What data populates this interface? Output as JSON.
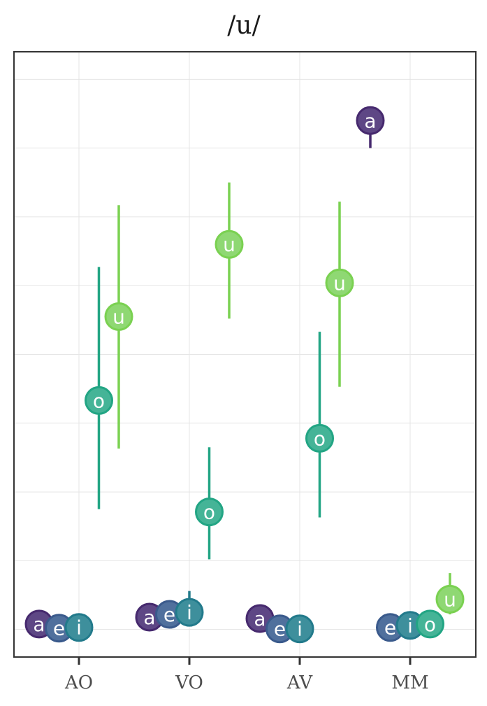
{
  "chart_data": {
    "type": "scatter",
    "title": "/u/",
    "xlabel": "",
    "ylabel": "",
    "categories": [
      "AO",
      "VO",
      "AV",
      "MM"
    ],
    "ylim": [
      -0.04,
      0.84
    ],
    "y_gridlines": [
      0.0,
      0.1,
      0.2,
      0.3,
      0.4,
      0.5,
      0.6,
      0.7,
      0.8
    ],
    "y_tick_labels_shown": false,
    "grid": true,
    "legend": "none",
    "series": [
      {
        "name": "a",
        "color": "#46296e",
        "fill": "#5e4785",
        "values": [
          0.008,
          0.018,
          0.016,
          0.74
        ],
        "lower": [
          null,
          null,
          null,
          0.7
        ],
        "upper": [
          null,
          null,
          null,
          0.76
        ]
      },
      {
        "name": "e",
        "color": "#3a5a8c",
        "fill": "#50709d",
        "values": [
          0.002,
          0.022,
          0.001,
          0.003
        ],
        "lower": [
          null,
          null,
          null,
          null
        ],
        "upper": [
          null,
          null,
          null,
          null
        ]
      },
      {
        "name": "i",
        "color": "#227a8b",
        "fill": "#3e8f9c",
        "values": [
          0.003,
          0.025,
          0.001,
          0.006
        ],
        "lower": [
          null,
          0.015,
          null,
          null
        ],
        "upper": [
          null,
          0.056,
          null,
          null
        ]
      },
      {
        "name": "o",
        "color": "#22a584",
        "fill": "#45b497",
        "values": [
          0.333,
          0.171,
          0.278,
          0.008
        ],
        "lower": [
          0.175,
          0.102,
          0.163,
          null
        ],
        "upper": [
          0.527,
          0.265,
          0.433,
          null
        ]
      },
      {
        "name": "u",
        "color": "#7ad151",
        "fill": "#8fd873",
        "values": [
          0.455,
          0.56,
          0.504,
          0.044
        ],
        "lower": [
          0.263,
          0.452,
          0.353,
          0.022
        ],
        "upper": [
          0.617,
          0.65,
          0.622,
          0.082
        ]
      }
    ]
  }
}
